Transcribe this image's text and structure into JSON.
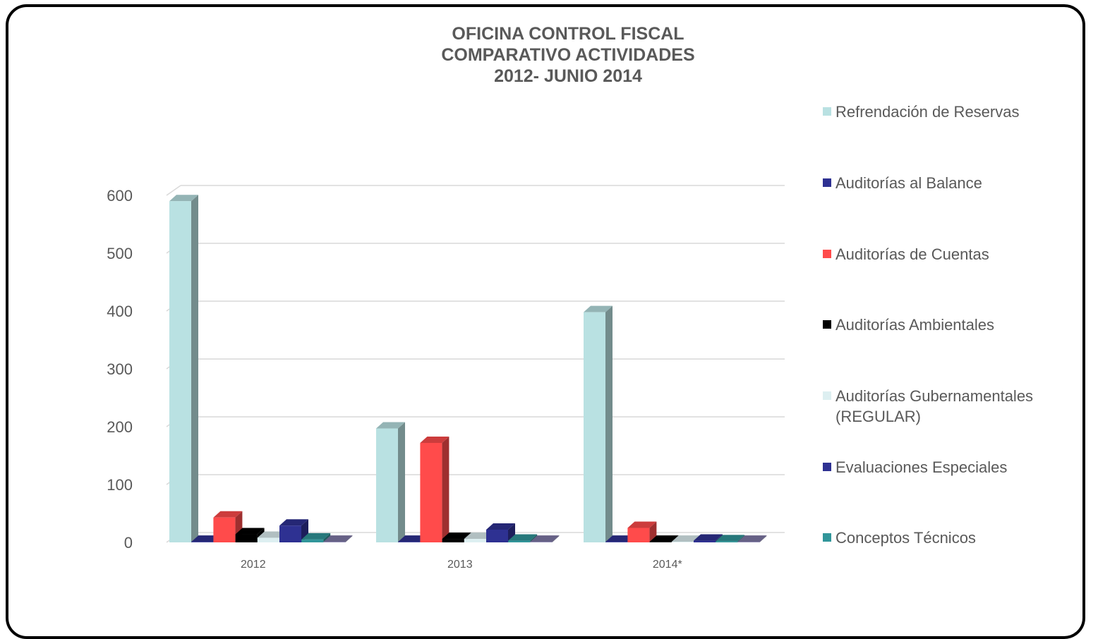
{
  "chart_data": {
    "type": "bar",
    "title_lines": [
      "OFICINA CONTROL FISCAL",
      "COMPARATIVO ACTIVIDADES",
      "2012- JUNIO 2014"
    ],
    "categories": [
      "2012",
      "2013",
      "2014*"
    ],
    "series": [
      {
        "name": "Refrendación de Reservas",
        "color": "#B9E1E2",
        "values": [
          590,
          197,
          398
        ]
      },
      {
        "name": "Auditorías al Balance",
        "color": "#2E3192",
        "values": [
          1,
          1,
          1
        ]
      },
      {
        "name": "Auditorías de Cuentas",
        "color": "#FF4B4B",
        "values": [
          43,
          172,
          25
        ]
      },
      {
        "name": "Auditorías Ambientales",
        "color": "#000000",
        "values": [
          14,
          6,
          1
        ]
      },
      {
        "name": "Auditorías Gubernamentales (REGULAR)",
        "color": "#DDEFF1",
        "values": [
          8,
          6,
          1
        ]
      },
      {
        "name": "Evaluaciones Especiales",
        "color": "#2E3192",
        "values": [
          29,
          22,
          3
        ]
      },
      {
        "name": "Conceptos Técnicos",
        "color": "#31969A",
        "values": [
          5,
          3,
          2
        ]
      },
      {
        "name": "",
        "color": "#8079A8",
        "values": [
          1,
          1,
          1
        ]
      }
    ],
    "yticks": [
      0,
      100,
      200,
      300,
      400,
      500,
      600
    ],
    "ylim": [
      0,
      600
    ],
    "grid": true,
    "legend_position": "right"
  }
}
